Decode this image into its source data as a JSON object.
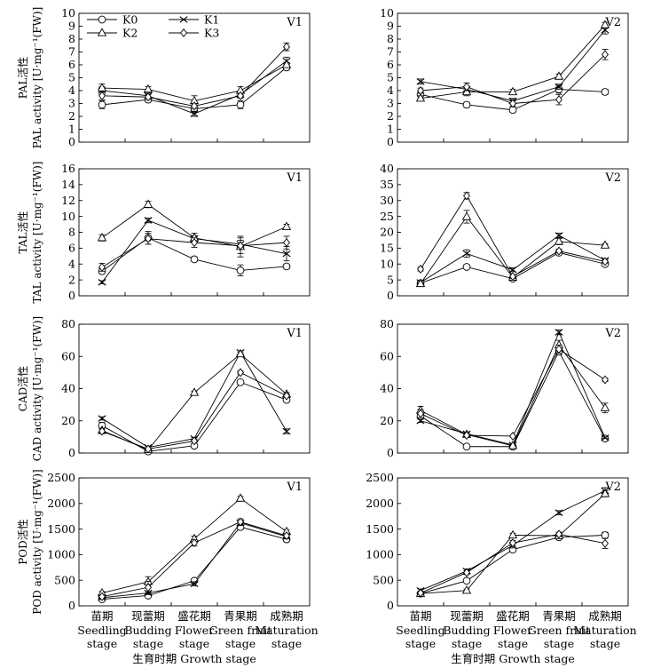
{
  "legend": {
    "entries": [
      {
        "name": "K0",
        "marker": "circle"
      },
      {
        "name": "K1",
        "marker": "x"
      },
      {
        "name": "K2",
        "marker": "triangle"
      },
      {
        "name": "K3",
        "marker": "diamond"
      }
    ]
  },
  "chart_data": [
    {
      "id": "pal-v1",
      "type": "line",
      "panel_label": "V1",
      "ylabel_zh": "PAL活性",
      "ylabel_en": "PAL activity [U·mg⁻¹(FW)]",
      "ylim": [
        0,
        10
      ],
      "yticks": [
        0,
        1,
        2,
        3,
        4,
        5,
        6,
        7,
        8,
        9,
        10
      ],
      "series": [
        {
          "name": "K0",
          "values": [
            2.9,
            3.3,
            2.6,
            2.9,
            5.8
          ],
          "err": [
            0.3,
            0.2,
            0.2,
            0.3,
            0.2
          ]
        },
        {
          "name": "K1",
          "values": [
            4.0,
            3.6,
            2.2,
            3.7,
            6.3
          ],
          "err": [
            0.3,
            0.2,
            0.2,
            0.2,
            0.3
          ]
        },
        {
          "name": "K2",
          "values": [
            4.2,
            4.1,
            3.2,
            4.0,
            6.0
          ],
          "err": [
            0.3,
            0.2,
            0.4,
            0.3,
            0.2
          ]
        },
        {
          "name": "K3",
          "values": [
            3.6,
            3.5,
            2.8,
            3.6,
            7.4
          ],
          "err": [
            0.3,
            0.2,
            0.2,
            0.2,
            0.3
          ]
        }
      ]
    },
    {
      "id": "pal-v2",
      "type": "line",
      "panel_label": "V2",
      "ylabel_zh": "",
      "ylabel_en": "",
      "ylim": [
        0,
        10
      ],
      "yticks": [
        0,
        1,
        2,
        3,
        4,
        5,
        6,
        7,
        8,
        9,
        10
      ],
      "series": [
        {
          "name": "K0",
          "values": [
            3.7,
            2.9,
            2.5,
            4.1,
            3.9
          ],
          "err": [
            0.3,
            0.2,
            0.2,
            0.3,
            0.2
          ]
        },
        {
          "name": "K1",
          "values": [
            4.7,
            4.1,
            3.2,
            4.3,
            8.7
          ],
          "err": [
            0.2,
            0.2,
            0.2,
            0.2,
            0.3
          ]
        },
        {
          "name": "K2",
          "values": [
            3.4,
            3.9,
            3.9,
            5.1,
            9.1
          ],
          "err": [
            0.2,
            0.3,
            0.2,
            0.2,
            0.2
          ]
        },
        {
          "name": "K3",
          "values": [
            4.0,
            4.3,
            3.0,
            3.3,
            6.8
          ],
          "err": [
            0.2,
            0.3,
            0.2,
            0.4,
            0.4
          ]
        }
      ]
    },
    {
      "id": "tal-v1",
      "type": "line",
      "panel_label": "V1",
      "ylabel_zh": "TAL活性",
      "ylabel_en": "TAL activity [U·mg⁻¹(FW)]",
      "ylim": [
        0,
        16
      ],
      "yticks": [
        0,
        2,
        4,
        6,
        8,
        10,
        12,
        14,
        16
      ],
      "series": [
        {
          "name": "K0",
          "values": [
            3.1,
            7.3,
            4.6,
            3.2,
            3.7
          ],
          "err": [
            0.3,
            0.8,
            0.3,
            0.7,
            0.3
          ]
        },
        {
          "name": "K1",
          "values": [
            1.7,
            9.5,
            7.2,
            6.5,
            5.3
          ],
          "err": [
            0.2,
            0.3,
            0.4,
            0.5,
            0.9
          ]
        },
        {
          "name": "K2",
          "values": [
            7.3,
            11.5,
            7.3,
            6.2,
            8.7
          ],
          "err": [
            0.4,
            0.4,
            0.6,
            1.3,
            0.3
          ]
        },
        {
          "name": "K3",
          "values": [
            3.6,
            7.2,
            6.7,
            6.3,
            6.7
          ],
          "err": [
            0.5,
            0.7,
            0.6,
            1.0,
            0.8
          ]
        }
      ]
    },
    {
      "id": "tal-v2",
      "type": "line",
      "panel_label": "V2",
      "ylabel_zh": "",
      "ylabel_en": "",
      "ylim": [
        0,
        40
      ],
      "yticks": [
        0,
        5,
        10,
        15,
        20,
        25,
        30,
        35,
        40
      ],
      "series": [
        {
          "name": "K0",
          "values": [
            4.0,
            9.1,
            5.4,
            13.6,
            10.0
          ],
          "err": [
            0.4,
            0.5,
            0.5,
            0.5,
            0.5
          ]
        },
        {
          "name": "K1",
          "values": [
            4.2,
            13.3,
            8.2,
            19.0,
            11.2
          ],
          "err": [
            0.4,
            1.2,
            0.6,
            0.7,
            0.5
          ]
        },
        {
          "name": "K2",
          "values": [
            3.8,
            24.9,
            5.8,
            17.1,
            15.9
          ],
          "err": [
            0.3,
            2.0,
            0.4,
            1.0,
            0.5
          ]
        },
        {
          "name": "K3",
          "values": [
            8.4,
            31.5,
            6.1,
            14.1,
            10.8
          ],
          "err": [
            0.6,
            1.0,
            0.6,
            0.6,
            0.5
          ]
        }
      ]
    },
    {
      "id": "cad-v1",
      "type": "line",
      "panel_label": "V1",
      "ylabel_zh": "CAD活性",
      "ylabel_en": "CAD activity [U·mg⁻¹(FW)]",
      "ylim": [
        0,
        80
      ],
      "yticks": [
        0,
        20,
        40,
        60,
        80
      ],
      "series": [
        {
          "name": "K0",
          "values": [
            17.0,
            1.0,
            4.5,
            44.0,
            33.0
          ],
          "err": [
            2.0,
            0.5,
            0.5,
            1.0,
            1.0
          ]
        },
        {
          "name": "K1",
          "values": [
            21.5,
            3.5,
            9.0,
            62.5,
            13.5
          ],
          "err": [
            1.0,
            0.5,
            0.5,
            1.0,
            1.5
          ]
        },
        {
          "name": "K2",
          "values": [
            14.0,
            2.0,
            37.5,
            61.5,
            36.5
          ],
          "err": [
            1.0,
            0.5,
            1.0,
            1.0,
            1.0
          ]
        },
        {
          "name": "K3",
          "values": [
            13.5,
            2.5,
            7.5,
            50.0,
            35.5
          ],
          "err": [
            1.5,
            0.5,
            0.5,
            1.0,
            1.0
          ]
        }
      ]
    },
    {
      "id": "cad-v2",
      "type": "line",
      "panel_label": "V2",
      "ylabel_zh": "",
      "ylabel_en": "",
      "ylim": [
        0,
        80
      ],
      "yticks": [
        0,
        20,
        40,
        60,
        80
      ],
      "series": [
        {
          "name": "K0",
          "values": [
            23.0,
            4.0,
            4.0,
            63.0,
            9.0
          ],
          "err": [
            2.0,
            0.5,
            0.5,
            2.0,
            1.0
          ]
        },
        {
          "name": "K1",
          "values": [
            20.0,
            12.0,
            5.0,
            75.0,
            9.5
          ],
          "err": [
            1.0,
            1.0,
            0.5,
            1.5,
            0.5
          ]
        },
        {
          "name": "K2",
          "values": [
            26.5,
            11.5,
            4.5,
            67.0,
            28.0
          ],
          "err": [
            2.5,
            1.0,
            0.5,
            3.0,
            3.0
          ]
        },
        {
          "name": "K3",
          "values": [
            24.5,
            11.0,
            10.5,
            64.5,
            45.5
          ],
          "err": [
            2.5,
            1.0,
            0.5,
            2.5,
            1.0
          ]
        }
      ]
    },
    {
      "id": "pod-v1",
      "type": "line",
      "panel_label": "V1",
      "ylabel_zh": "POD活性",
      "ylabel_en": "POD activity [U·mg⁻¹(FW)]",
      "ylim": [
        0,
        2500
      ],
      "yticks": [
        0,
        500,
        1000,
        1500,
        2000,
        2500
      ],
      "series": [
        {
          "name": "K0",
          "values": [
            130,
            200,
            490,
            1540,
            1300
          ],
          "err": [
            20,
            20,
            40,
            50,
            40
          ]
        },
        {
          "name": "K1",
          "values": [
            160,
            250,
            430,
            1620,
            1350
          ],
          "err": [
            20,
            30,
            40,
            50,
            40
          ]
        },
        {
          "name": "K2",
          "values": [
            250,
            470,
            1310,
            2100,
            1450
          ],
          "err": [
            30,
            100,
            50,
            40,
            40
          ]
        },
        {
          "name": "K3",
          "values": [
            180,
            360,
            1230,
            1640,
            1370
          ],
          "err": [
            30,
            120,
            60,
            60,
            40
          ]
        }
      ]
    },
    {
      "id": "pod-v2",
      "type": "line",
      "panel_label": "V2",
      "ylabel_zh": "",
      "ylabel_en": "",
      "ylim": [
        0,
        2500
      ],
      "yticks": [
        0,
        500,
        1000,
        1500,
        2000,
        2500
      ],
      "series": [
        {
          "name": "K0",
          "values": [
            240,
            490,
            1100,
            1340,
            1380
          ],
          "err": [
            30,
            30,
            50,
            40,
            60
          ]
        },
        {
          "name": "K1",
          "values": [
            300,
            680,
            1180,
            1820,
            2250
          ],
          "err": [
            30,
            40,
            50,
            40,
            60
          ]
        },
        {
          "name": "K2",
          "values": [
            240,
            300,
            1380,
            1370,
            2190
          ],
          "err": [
            30,
            30,
            40,
            40,
            60
          ]
        },
        {
          "name": "K3",
          "values": [
            250,
            650,
            1230,
            1400,
            1220
          ],
          "err": [
            30,
            40,
            50,
            40,
            100
          ]
        }
      ]
    }
  ],
  "x_categories": [
    {
      "zh": "苗期",
      "en1": "Seedling",
      "en2": "stage"
    },
    {
      "zh": "现蕾期",
      "en1": "Budding",
      "en2": "stage"
    },
    {
      "zh": "盛花期",
      "en1": "Flower",
      "en2": "stage"
    },
    {
      "zh": "青果期",
      "en1": "Green fruit",
      "en2": "stage"
    },
    {
      "zh": "成熟期",
      "en1": "Maturation",
      "en2": "stage"
    }
  ],
  "xlabel": "生育时期 Growth stage"
}
